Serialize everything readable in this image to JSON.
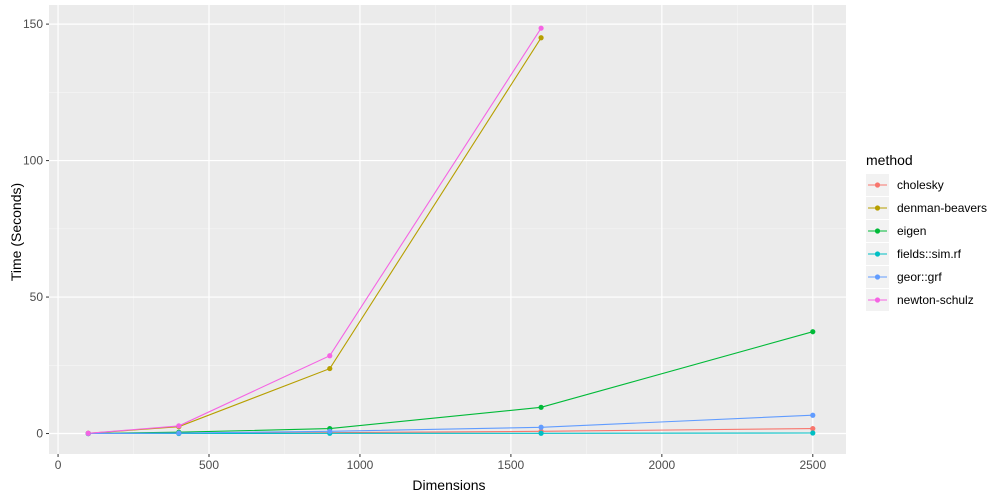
{
  "chart_data": {
    "type": "line",
    "xlabel": "Dimensions",
    "ylabel": "Time (Seconds)",
    "xlim": [
      -30,
      2610
    ],
    "ylim": [
      -7.5,
      157
    ],
    "x_ticks": [
      0,
      500,
      1000,
      1500,
      2000,
      2500
    ],
    "y_ticks": [
      0,
      50,
      100,
      150
    ],
    "grid": true,
    "legend_title": "method",
    "legend_position": "right",
    "series": [
      {
        "name": "cholesky",
        "color": "#F8766D",
        "x": [
          100,
          400,
          900,
          1600,
          2500
        ],
        "y": [
          0.0,
          0.1,
          0.3,
          0.8,
          1.8
        ]
      },
      {
        "name": "denman-beavers",
        "color": "#B79F00",
        "x": [
          100,
          400,
          900,
          1600
        ],
        "y": [
          0.1,
          2.5,
          23.8,
          145.0
        ]
      },
      {
        "name": "eigen",
        "color": "#00BA38",
        "x": [
          100,
          400,
          900,
          1600,
          2500
        ],
        "y": [
          0.0,
          0.5,
          1.8,
          9.6,
          37.3
        ]
      },
      {
        "name": "fields::sim.rf",
        "color": "#00BFC4",
        "x": [
          100,
          400,
          900,
          1600,
          2500
        ],
        "y": [
          0.0,
          0.0,
          0.1,
          0.1,
          0.2
        ]
      },
      {
        "name": "geor::grf",
        "color": "#619CFF",
        "x": [
          100,
          400,
          900,
          1600,
          2500
        ],
        "y": [
          0.0,
          0.2,
          0.8,
          2.3,
          6.7
        ]
      },
      {
        "name": "newton-schulz",
        "color": "#F564E3",
        "x": [
          100,
          400,
          900,
          1600
        ],
        "y": [
          0.1,
          2.8,
          28.5,
          148.5
        ]
      }
    ]
  }
}
